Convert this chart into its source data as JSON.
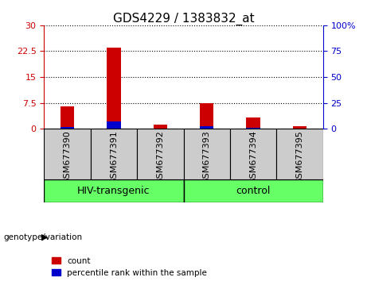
{
  "title": "GDS4229 / 1383832_at",
  "samples": [
    "GSM677390",
    "GSM677391",
    "GSM677392",
    "GSM677393",
    "GSM677394",
    "GSM677395"
  ],
  "count_values": [
    6.5,
    23.5,
    1.2,
    7.5,
    3.2,
    0.8
  ],
  "percentile_values": [
    1.8,
    6.8,
    0.4,
    2.2,
    0.8,
    0.25
  ],
  "left_yticks": [
    0,
    7.5,
    15,
    22.5,
    30
  ],
  "left_ylabels": [
    "0",
    "7.5",
    "15",
    "22.5",
    "30"
  ],
  "right_yticks": [
    0,
    25,
    50,
    75,
    100
  ],
  "right_ylabels": [
    "0",
    "25",
    "50",
    "75",
    "100%"
  ],
  "ylim_left": [
    0,
    30
  ],
  "ylim_right": [
    0,
    100
  ],
  "left_ycolor": "#cc0000",
  "right_ycolor": "#0000cc",
  "bar_color_red": "#cc0000",
  "bar_color_blue": "#0000cc",
  "group_spans": [
    {
      "start": 0,
      "end": 2,
      "label": "HIV-transgenic"
    },
    {
      "start": 3,
      "end": 5,
      "label": "control"
    }
  ],
  "group_color": "#66ff66",
  "group_label": "genotype/variation",
  "xlabel_area_color": "#cccccc",
  "plot_bg_color": "#ffffff",
  "grid_color": "black",
  "legend_entries": [
    "count",
    "percentile rank within the sample"
  ],
  "legend_colors": [
    "#cc0000",
    "#0000cc"
  ],
  "bar_width": 0.3,
  "title_fontsize": 11,
  "tick_fontsize": 8,
  "group_fontsize": 9
}
